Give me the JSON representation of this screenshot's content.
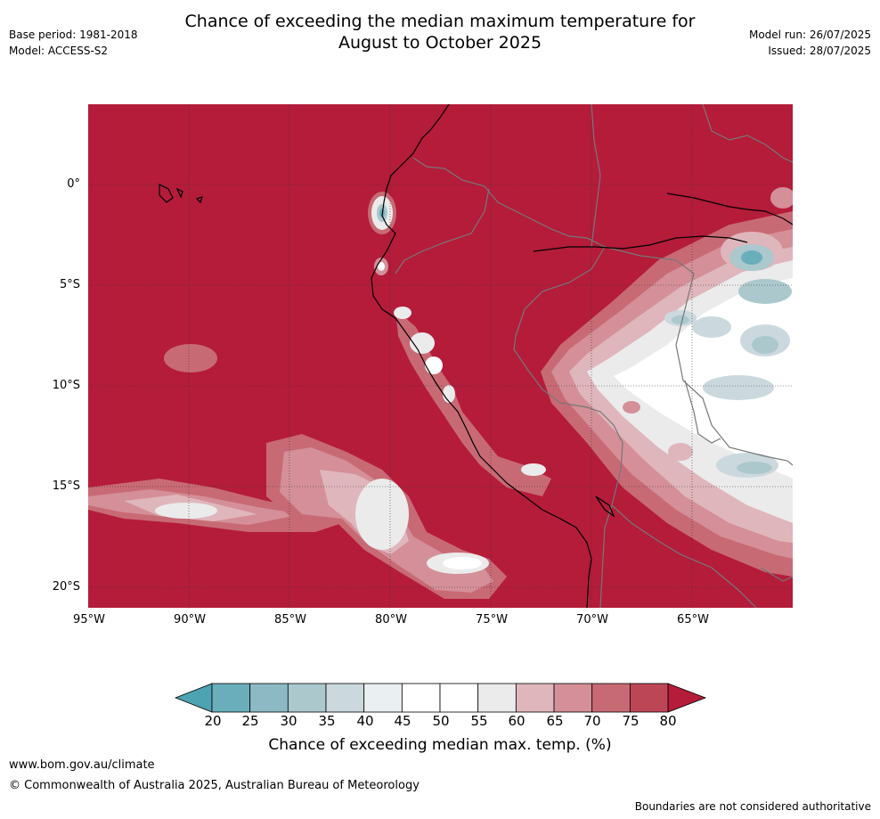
{
  "title_line1": "Chance of exceeding the median maximum temperature for",
  "title_line2": "August to October 2025",
  "meta": {
    "base_period": "Base period: 1981-2018",
    "model": "Model: ACCESS-S2",
    "model_run": "Model run: 26/07/2025",
    "issued": "Issued: 28/07/2025"
  },
  "map": {
    "lat_labels": [
      "0°",
      "5°S",
      "10°S",
      "15°S",
      "20°S"
    ],
    "lon_labels": [
      "95°W",
      "90°W",
      "85°W",
      "80°W",
      "75°W",
      "70°W",
      "65°W"
    ],
    "background_color": "#b41c3a"
  },
  "colorbar": {
    "ticks": [
      "20",
      "25",
      "30",
      "35",
      "40",
      "45",
      "50",
      "55",
      "60",
      "65",
      "70",
      "75",
      "80"
    ],
    "colors": [
      "#4ea3b2",
      "#6aaebb",
      "#8db9c4",
      "#abc8cd",
      "#cbd9de",
      "#eaeff1",
      "#ffffff",
      "#ffffff",
      "#ebebeb",
      "#dfb6bc",
      "#d48f98",
      "#c86a74",
      "#bd4656",
      "#b41c3a"
    ],
    "label": "Chance of exceeding median max. temp. (%)"
  },
  "footer": {
    "website": "www.bom.gov.au/climate",
    "copyright": "© Commonwealth of Australia 2025, Australian Bureau of Meteorology",
    "disclaimer": "Boundaries are not considered authoritative"
  }
}
